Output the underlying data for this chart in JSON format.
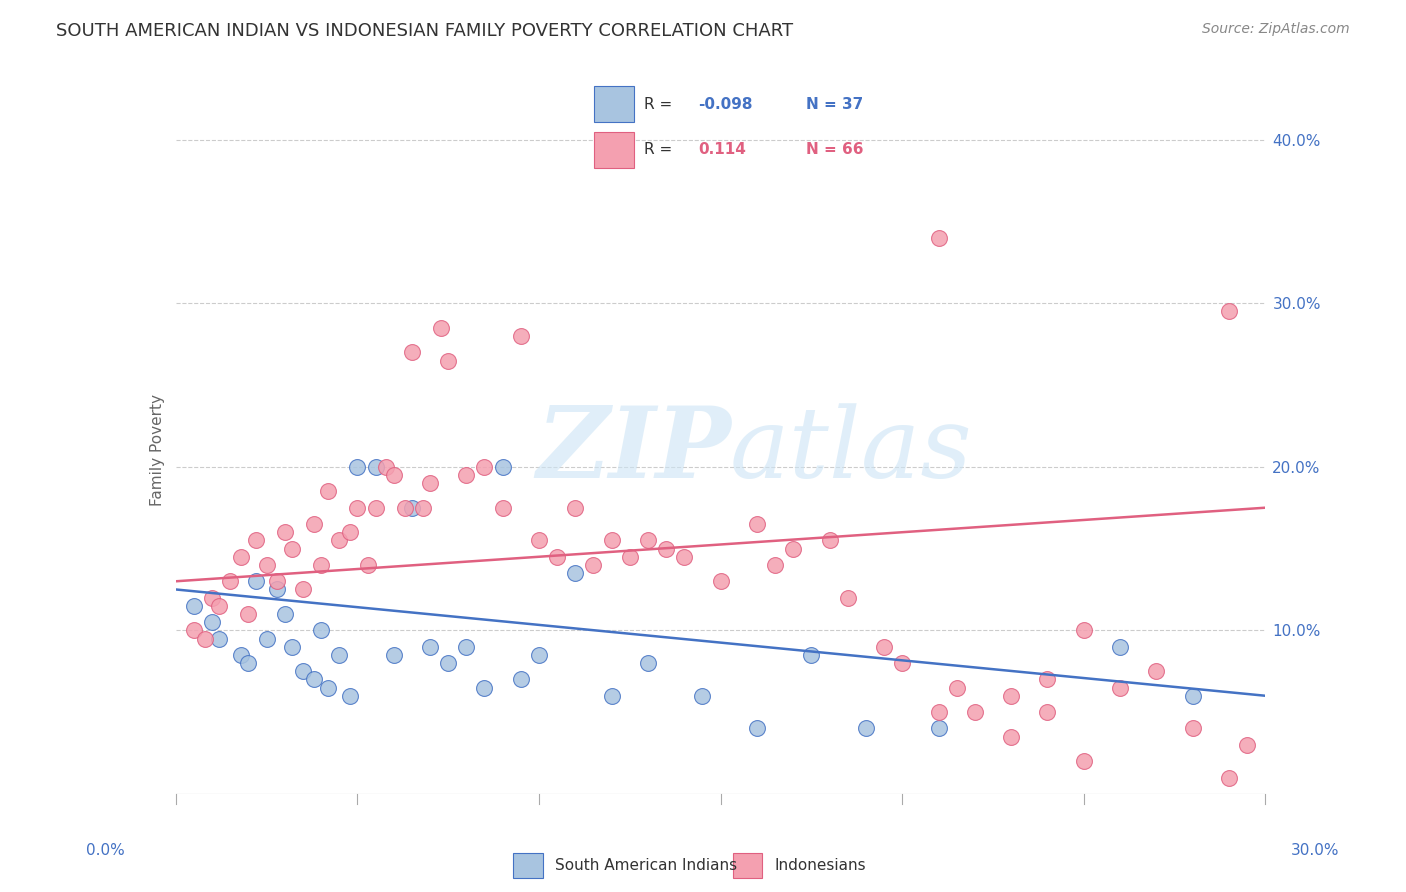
{
  "title": "SOUTH AMERICAN INDIAN VS INDONESIAN FAMILY POVERTY CORRELATION CHART",
  "source": "Source: ZipAtlas.com",
  "ylabel": "Family Poverty",
  "y_ticks": [
    0.0,
    0.1,
    0.2,
    0.3,
    0.4
  ],
  "y_tick_labels": [
    "",
    "10.0%",
    "20.0%",
    "30.0%",
    "40.0%"
  ],
  "x_range": [
    0.0,
    0.3
  ],
  "y_range": [
    0.0,
    0.42
  ],
  "blue_color": "#a8c4e0",
  "pink_color": "#f4a0b0",
  "blue_line_color": "#4472c4",
  "pink_line_color": "#e06080",
  "blue_points_x": [
    0.005,
    0.01,
    0.012,
    0.018,
    0.02,
    0.022,
    0.025,
    0.028,
    0.03,
    0.032,
    0.035,
    0.038,
    0.04,
    0.042,
    0.045,
    0.048,
    0.05,
    0.055,
    0.06,
    0.065,
    0.07,
    0.075,
    0.08,
    0.085,
    0.09,
    0.095,
    0.1,
    0.11,
    0.12,
    0.13,
    0.145,
    0.16,
    0.175,
    0.19,
    0.21,
    0.26,
    0.28
  ],
  "blue_points_y": [
    0.115,
    0.105,
    0.095,
    0.085,
    0.08,
    0.13,
    0.095,
    0.125,
    0.11,
    0.09,
    0.075,
    0.07,
    0.1,
    0.065,
    0.085,
    0.06,
    0.2,
    0.2,
    0.085,
    0.175,
    0.09,
    0.08,
    0.09,
    0.065,
    0.2,
    0.07,
    0.085,
    0.135,
    0.06,
    0.08,
    0.06,
    0.04,
    0.085,
    0.04,
    0.04,
    0.09,
    0.06
  ],
  "pink_points_x": [
    0.005,
    0.008,
    0.01,
    0.012,
    0.015,
    0.018,
    0.02,
    0.022,
    0.025,
    0.028,
    0.03,
    0.032,
    0.035,
    0.038,
    0.04,
    0.042,
    0.045,
    0.048,
    0.05,
    0.053,
    0.055,
    0.058,
    0.06,
    0.063,
    0.065,
    0.068,
    0.07,
    0.073,
    0.075,
    0.08,
    0.085,
    0.09,
    0.095,
    0.1,
    0.105,
    0.11,
    0.115,
    0.12,
    0.125,
    0.13,
    0.135,
    0.14,
    0.15,
    0.16,
    0.165,
    0.17,
    0.18,
    0.185,
    0.195,
    0.2,
    0.21,
    0.215,
    0.22,
    0.23,
    0.24,
    0.25,
    0.26,
    0.27,
    0.28,
    0.29,
    0.295,
    0.21,
    0.25,
    0.24,
    0.23,
    0.29
  ],
  "pink_points_y": [
    0.1,
    0.095,
    0.12,
    0.115,
    0.13,
    0.145,
    0.11,
    0.155,
    0.14,
    0.13,
    0.16,
    0.15,
    0.125,
    0.165,
    0.14,
    0.185,
    0.155,
    0.16,
    0.175,
    0.14,
    0.175,
    0.2,
    0.195,
    0.175,
    0.27,
    0.175,
    0.19,
    0.285,
    0.265,
    0.195,
    0.2,
    0.175,
    0.28,
    0.155,
    0.145,
    0.175,
    0.14,
    0.155,
    0.145,
    0.155,
    0.15,
    0.145,
    0.13,
    0.165,
    0.14,
    0.15,
    0.155,
    0.12,
    0.09,
    0.08,
    0.05,
    0.065,
    0.05,
    0.035,
    0.05,
    0.02,
    0.065,
    0.075,
    0.04,
    0.01,
    0.03,
    0.34,
    0.1,
    0.07,
    0.06,
    0.295
  ],
  "blue_trend_y_start": 0.125,
  "blue_trend_y_end": 0.06,
  "pink_trend_y_start": 0.13,
  "pink_trend_y_end": 0.175
}
